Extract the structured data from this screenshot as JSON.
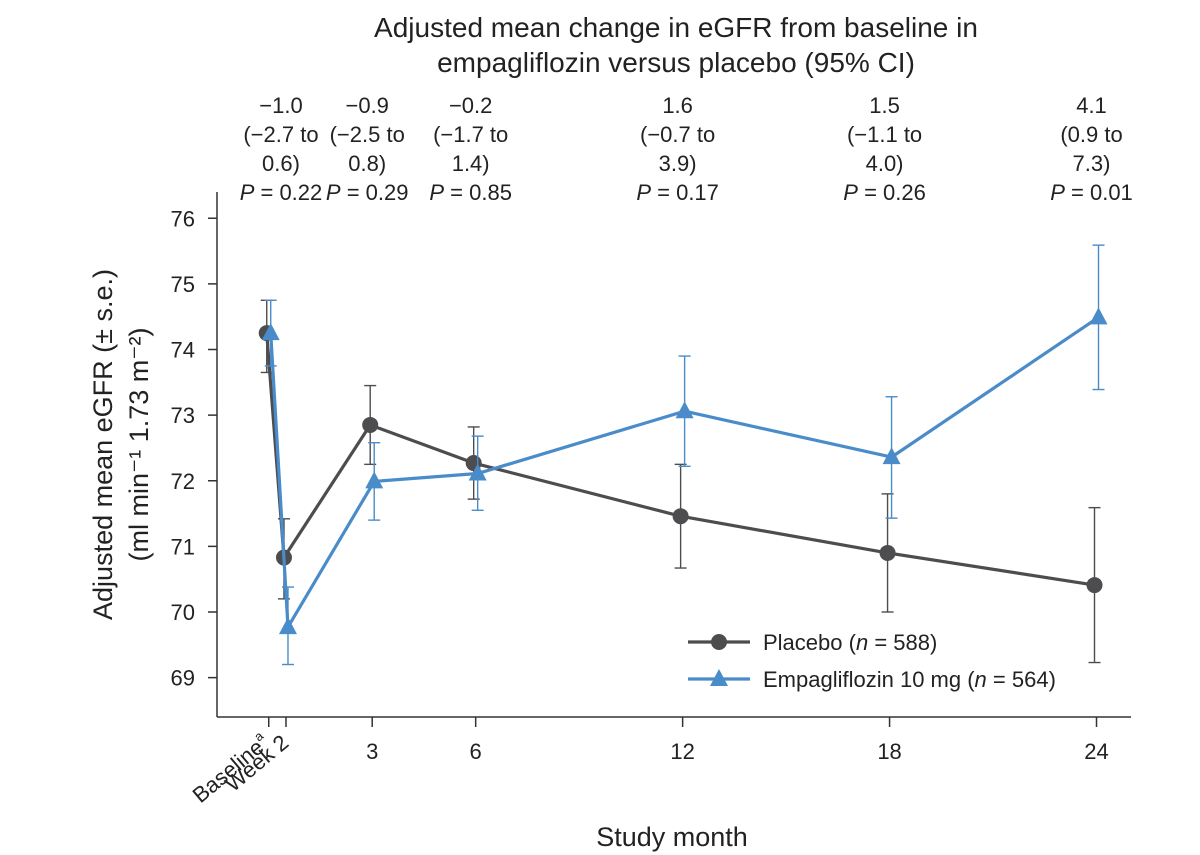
{
  "chart_data": {
    "type": "line",
    "title_lines": [
      "Adjusted mean change in eGFR from baseline in",
      "empagliflozin versus placebo (95% CI)"
    ],
    "xlabel": "Study month",
    "ylabel_lines": [
      "Adjusted mean eGFR (± s.e.)",
      "(ml min⁻¹ 1.73 m⁻²)"
    ],
    "ylim": [
      68.4,
      76.4
    ],
    "xlim": [
      -1.5,
      25
    ],
    "yticks": [
      69,
      70,
      71,
      72,
      73,
      74,
      75,
      76
    ],
    "x_positions": [
      0,
      0.5,
      3,
      6,
      12,
      18,
      24
    ],
    "x_tick_labels": [
      "Baseline",
      "Week 2",
      "3",
      "6",
      "12",
      "18",
      "24"
    ],
    "baseline_superscript": "a",
    "series": [
      {
        "name": "Placebo",
        "n_label": "n",
        "n_value": "588",
        "color": "#4d4d4f",
        "marker": "circle",
        "values": [
          74.25,
          70.83,
          72.85,
          72.27,
          71.46,
          70.9,
          70.41
        ],
        "se_low": [
          73.65,
          70.2,
          72.25,
          71.72,
          70.67,
          70.0,
          69.23
        ],
        "se_high": [
          74.75,
          71.42,
          73.45,
          72.82,
          72.25,
          71.8,
          71.59
        ]
      },
      {
        "name": "Empagliflozin 10 mg",
        "n_label": "n",
        "n_value": "564",
        "color": "#4a8cc9",
        "marker": "triangle",
        "values": [
          74.25,
          69.77,
          71.99,
          72.11,
          73.06,
          72.36,
          74.49
        ],
        "se_low": [
          73.75,
          69.2,
          71.4,
          71.55,
          72.22,
          71.43,
          73.39
        ],
        "se_high": [
          74.75,
          70.38,
          72.58,
          72.68,
          73.9,
          73.28,
          75.59
        ]
      }
    ],
    "annotations": [
      {
        "x": 0.5,
        "lines": [
          "−1.0",
          "(−2.7 to",
          "0.6)"
        ],
        "p_label": "P",
        "p_value": "= 0.22"
      },
      {
        "x": 3,
        "lines": [
          "−0.9",
          "(−2.5 to",
          "0.8)"
        ],
        "p_label": "P",
        "p_value": "= 0.29"
      },
      {
        "x": 6,
        "lines": [
          "−0.2",
          "(−1.7 to",
          "1.4)"
        ],
        "p_label": "P",
        "p_value": "= 0.85"
      },
      {
        "x": 12,
        "lines": [
          "1.6",
          "(−0.7 to",
          "3.9)"
        ],
        "p_label": "P",
        "p_value": "= 0.17"
      },
      {
        "x": 18,
        "lines": [
          "1.5",
          "(−1.1 to",
          "4.0)"
        ],
        "p_label": "P",
        "p_value": "= 0.26"
      },
      {
        "x": 24,
        "lines": [
          "4.1",
          "(0.9 to",
          "7.3)"
        ],
        "p_label": "P",
        "p_value": "= 0.01"
      }
    ],
    "legend_position": "bottom-right"
  }
}
